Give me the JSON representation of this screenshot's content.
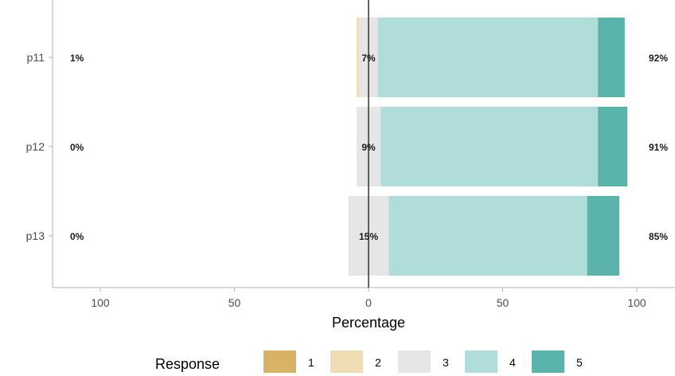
{
  "chart_data": {
    "type": "bar",
    "orientation": "horizontal",
    "stacked": "diverging",
    "categories": [
      "p11",
      "p12",
      "p13"
    ],
    "response_levels": [
      "1",
      "2",
      "3",
      "4",
      "5"
    ],
    "colors": [
      "#d8b365",
      "#f0ddb4",
      "#e6e6e6",
      "#b0dcd9",
      "#5ab4ac"
    ],
    "series": [
      {
        "values": [
          0,
          0,
          0
        ]
      },
      {
        "values": [
          1,
          0,
          0
        ]
      },
      {
        "values": [
          7,
          9,
          15
        ]
      },
      {
        "values": [
          82,
          81,
          74
        ]
      },
      {
        "values": [
          10,
          11,
          12
        ]
      }
    ],
    "left_labels": [
      "1%",
      "0%",
      "0%"
    ],
    "center_labels": [
      "7%",
      "9%",
      "15%"
    ],
    "right_labels": [
      "92%",
      "91%",
      "85%"
    ],
    "xlabel": "Percentage",
    "xticks": [
      -100,
      -50,
      0,
      50,
      100
    ],
    "xtick_labels": [
      "100",
      "50",
      "0",
      "50",
      "100"
    ],
    "xlim": [
      -116,
      116
    ],
    "legend": {
      "title": "Response",
      "position": "bottom"
    },
    "grid": false
  }
}
